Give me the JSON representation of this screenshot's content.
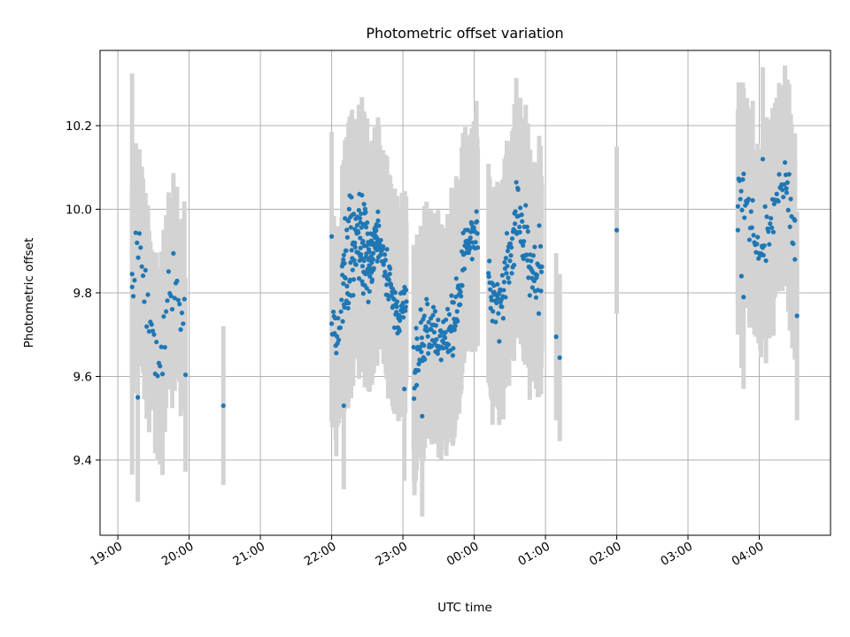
{
  "chart_data": {
    "type": "scatter",
    "title": "Photometric offset variation",
    "xlabel": "UTC time",
    "ylabel": "Photometric offset",
    "x_ticks": [
      "19:00",
      "20:00",
      "21:00",
      "22:00",
      "23:00",
      "00:00",
      "01:00",
      "02:00",
      "03:00",
      "04:00"
    ],
    "x_tick_hours": [
      0,
      1,
      2,
      3,
      4,
      5,
      6,
      7,
      8,
      9
    ],
    "xlim_hours_from_1900": [
      -0.25,
      10.0
    ],
    "y_ticks": [
      "9.4",
      "9.6",
      "9.8",
      "10.0",
      "10.2"
    ],
    "y_tick_values": [
      9.4,
      9.6,
      9.8,
      10.0,
      10.2
    ],
    "ylim": [
      9.22,
      10.38
    ],
    "grid": true,
    "colors": {
      "point": "#1f77b4",
      "errorbar": "#d3d3d3",
      "grid": "#b0b0b0"
    },
    "series": [
      {
        "clusters": [
          {
            "t0": 0.2,
            "t1": 0.95,
            "mean": 9.75,
            "slope": -0.1,
            "amp": 0.1,
            "noise": 0.05,
            "err": 0.21,
            "n": 45
          },
          {
            "t0": 3.15,
            "t1": 3.65,
            "mean": 9.92,
            "slope": 0.15,
            "amp": 0.08,
            "noise": 0.05,
            "err": 0.22,
            "n": 70
          },
          {
            "t0": 3.0,
            "t1": 3.4,
            "mean": 9.85,
            "slope": 0.3,
            "amp": 0.1,
            "noise": 0.06,
            "err": 0.22,
            "n": 50
          },
          {
            "t0": 3.4,
            "t1": 4.05,
            "mean": 9.85,
            "slope": -0.15,
            "amp": 0.06,
            "noise": 0.04,
            "err": 0.22,
            "n": 120
          },
          {
            "t0": 4.15,
            "t1": 5.05,
            "mean": 9.75,
            "slope": 0.3,
            "amp": 0.06,
            "noise": 0.05,
            "err": 0.23,
            "n": 150
          },
          {
            "t0": 5.2,
            "t1": 5.95,
            "mean": 9.88,
            "slope": 0.1,
            "amp": 0.08,
            "noise": 0.06,
            "err": 0.23,
            "n": 120
          },
          {
            "t0": 8.7,
            "t1": 9.5,
            "mean": 9.98,
            "slope": 0.02,
            "amp": 0.08,
            "noise": 0.05,
            "err": 0.22,
            "n": 70
          }
        ],
        "extra_points": [
          {
            "x": 0.2,
            "y": 9.845,
            "err": 0.48
          },
          {
            "x": 0.28,
            "y": 9.55,
            "err": 0.25
          },
          {
            "x": 1.48,
            "y": 9.53,
            "err": 0.19
          },
          {
            "x": 3.17,
            "y": 9.53,
            "err": 0.2
          },
          {
            "x": 3.0,
            "y": 9.935,
            "err": 0.25
          },
          {
            "x": 4.02,
            "y": 9.76,
            "err": 0.2
          },
          {
            "x": 4.02,
            "y": 9.57,
            "err": 0.22
          },
          {
            "x": 4.25,
            "y": 9.76,
            "err": 0.2
          },
          {
            "x": 4.27,
            "y": 9.505,
            "err": 0.24
          },
          {
            "x": 6.15,
            "y": 9.695,
            "err": 0.2
          },
          {
            "x": 6.2,
            "y": 9.645,
            "err": 0.2
          },
          {
            "x": 7.0,
            "y": 9.95,
            "err": 0.2
          },
          {
            "x": 8.7,
            "y": 9.95,
            "err": 0.25
          },
          {
            "x": 8.75,
            "y": 9.84,
            "err": 0.22
          },
          {
            "x": 8.78,
            "y": 9.79,
            "err": 0.22
          },
          {
            "x": 9.05,
            "y": 10.12,
            "err": 0.22
          },
          {
            "x": 9.38,
            "y": 10.05,
            "err": 0.23
          },
          {
            "x": 9.5,
            "y": 9.88,
            "err": 0.24
          },
          {
            "x": 9.53,
            "y": 9.745,
            "err": 0.25
          }
        ]
      }
    ]
  }
}
